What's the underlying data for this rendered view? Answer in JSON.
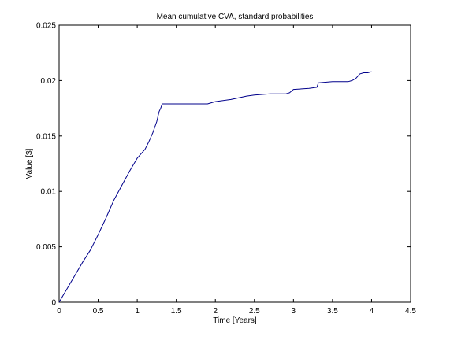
{
  "chart_data": {
    "type": "line",
    "title": "Mean cumulative CVA, standard probabilities",
    "xlabel": "Time [Years]",
    "ylabel": "Value [$]",
    "xlim": [
      0,
      4.5
    ],
    "ylim": [
      0,
      0.025
    ],
    "xticks": [
      0,
      0.5,
      1,
      1.5,
      2,
      2.5,
      3,
      3.5,
      4,
      4.5
    ],
    "xtick_labels": [
      "0",
      "0.5",
      "1",
      "1.5",
      "2",
      "2.5",
      "3",
      "3.5",
      "4",
      "4.5"
    ],
    "yticks": [
      0,
      0.005,
      0.01,
      0.015,
      0.02,
      0.025
    ],
    "ytick_labels": [
      "0",
      "0.005",
      "0.01",
      "0.015",
      "0.02",
      "0.025"
    ],
    "grid": false,
    "legend": "none",
    "line_color": "#00008b",
    "series": [
      {
        "x": [
          0,
          0.05,
          0.1,
          0.2,
          0.3,
          0.4,
          0.5,
          0.6,
          0.7,
          0.8,
          0.9,
          1.0,
          1.05,
          1.1,
          1.15,
          1.2,
          1.25,
          1.28,
          1.3,
          1.32,
          1.35,
          1.5,
          1.7,
          1.9,
          2.0,
          2.2,
          2.4,
          2.5,
          2.7,
          2.9,
          2.95,
          3.0,
          3.2,
          3.3,
          3.32,
          3.5,
          3.7,
          3.75,
          3.8,
          3.85,
          3.9,
          3.95,
          4.0
        ],
        "y": [
          0,
          0.0006,
          0.0012,
          0.0024,
          0.0036,
          0.0047,
          0.0061,
          0.0076,
          0.0092,
          0.0105,
          0.0118,
          0.013,
          0.0134,
          0.0138,
          0.0145,
          0.0153,
          0.0163,
          0.0172,
          0.0175,
          0.0179,
          0.0179,
          0.0179,
          0.0179,
          0.0179,
          0.0181,
          0.0183,
          0.0186,
          0.0187,
          0.0188,
          0.0188,
          0.0189,
          0.0192,
          0.0193,
          0.0194,
          0.0198,
          0.0199,
          0.0199,
          0.02,
          0.0202,
          0.0206,
          0.0207,
          0.0207,
          0.0208
        ]
      }
    ]
  }
}
